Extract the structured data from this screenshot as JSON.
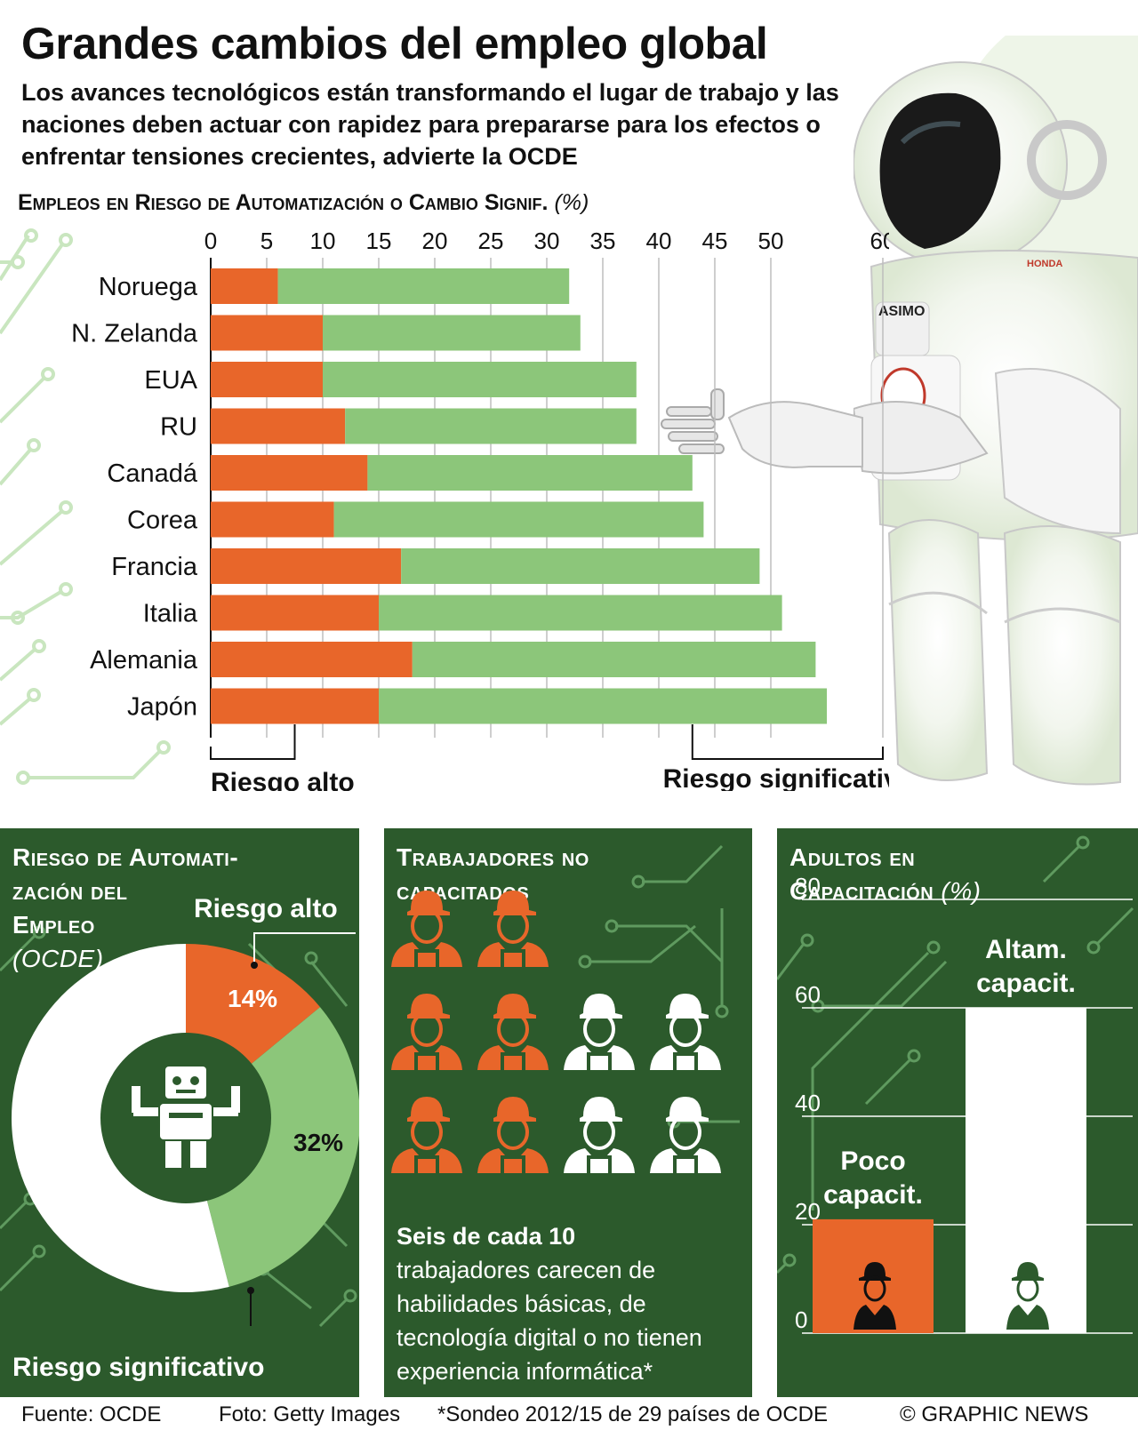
{
  "header": {
    "title": "Grandes cambios del empleo global",
    "subtitle": "Los avances tecnológicos están transformando el lugar de trabajo y las naciones deben actuar con rapidez para prepararse para los efectos o enfrentar tensiones crecientes, advierte la OCDE",
    "chart_title": "Empleos en Riesgo de Automatización o Cambio Signif.",
    "chart_unit": "(%)"
  },
  "robot_labels": {
    "name": "ASIMO",
    "brand": "HONDA"
  },
  "chart_data": [
    {
      "type": "bar",
      "orientation": "horizontal",
      "stacked": true,
      "categories": [
        "Noruega",
        "N. Zelanda",
        "EUA",
        "RU",
        "Canadá",
        "Corea",
        "Francia",
        "Italia",
        "Alemania",
        "Japón"
      ],
      "series": [
        {
          "name": "Riesgo alto",
          "color": "#e8662a",
          "values": [
            6,
            10,
            10,
            12,
            14,
            11,
            17,
            15,
            18,
            15
          ]
        },
        {
          "name": "Riesgo significativo",
          "color": "#8cc67a",
          "values": [
            26,
            23,
            28,
            26,
            29,
            33,
            32,
            36,
            36,
            40
          ]
        }
      ],
      "xlim": [
        0,
        60
      ],
      "xticks": [
        0,
        5,
        10,
        15,
        20,
        25,
        30,
        35,
        40,
        45,
        50,
        60
      ],
      "grid": true
    },
    {
      "type": "pie",
      "title": "Riesgo de Automatización del Empleo",
      "subtitle": "(OCDE)",
      "slices": [
        {
          "label": "Riesgo alto",
          "value": 14,
          "value_label": "14%",
          "color": "#e8662a"
        },
        {
          "label": "Riesgo significativo",
          "value": 32,
          "value_label": "32%",
          "color": "#8cc67a"
        },
        {
          "label": "",
          "value": 54,
          "color": "#ffffff"
        }
      ]
    },
    {
      "type": "bar",
      "title": "Adultos en Capacitación",
      "unit": "(%)",
      "categories": [
        "Poco capacit.",
        "Altam. capacit."
      ],
      "values": [
        21,
        60
      ],
      "colors": [
        "#e8662a",
        "#ffffff"
      ],
      "ylim": [
        0,
        80
      ],
      "yticks": [
        0,
        20,
        40,
        60,
        80
      ],
      "grid": true
    }
  ],
  "unskilled": {
    "title_line1": "Trabajadores no",
    "title_line2": "capacitados",
    "highlight": "Seis de cada 10",
    "text": "trabajadores carecen de habilidades básicas, de tecnología digital o no tienen experiencia informática*",
    "total": 10,
    "unskilled_count": 6,
    "colors": {
      "unskilled": "#e8662a",
      "skilled": "#ffffff"
    }
  },
  "pie_panel": {
    "title_line1": "Riesgo de Automati-",
    "title_line2": "zación del",
    "title_line3": "Empleo",
    "subtitle": "(OCDE)"
  },
  "training_panel": {
    "title_line1": "Adultos en",
    "title_line2": "Capacitación",
    "unit": "(%)"
  },
  "footer": {
    "source": "Fuente: OCDE",
    "photo": "Foto: Getty Images",
    "note": "*Sondeo 2012/15 de 29 países de OCDE",
    "credit": "© GRAPHIC NEWS"
  },
  "colors": {
    "orange": "#e8662a",
    "green": "#8cc67a",
    "dark_green": "#2c5a2c",
    "circuit": "#5f9a5f"
  }
}
